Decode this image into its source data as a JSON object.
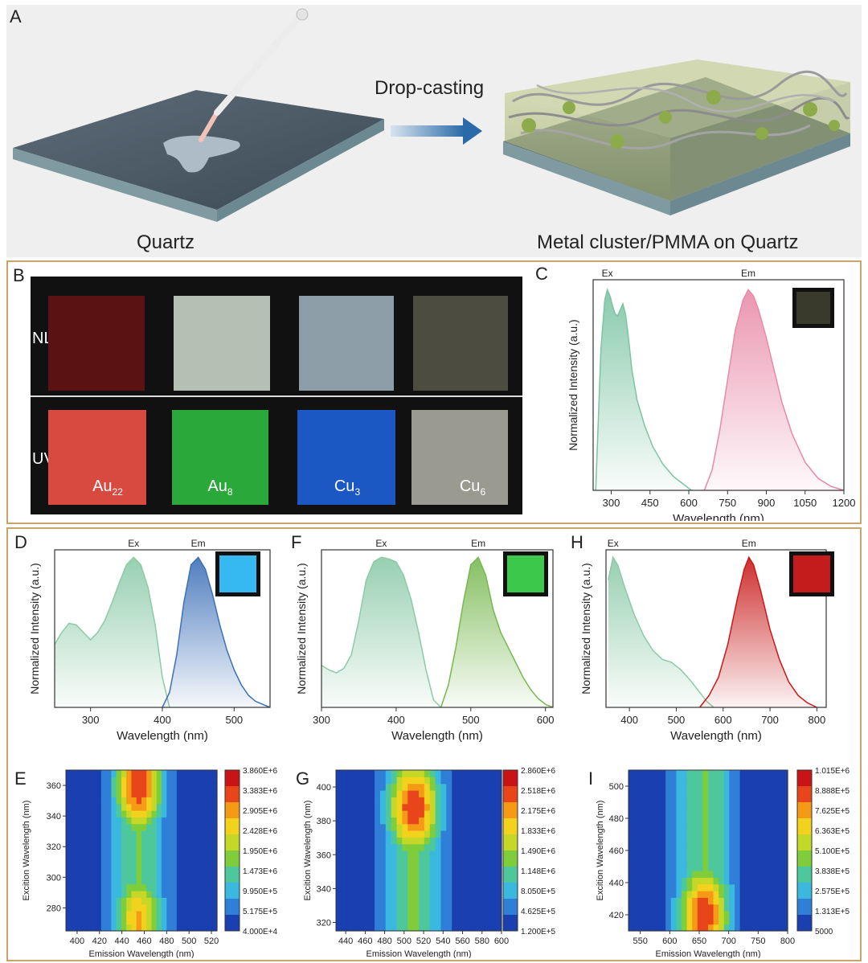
{
  "panel_a": {
    "letter": "A",
    "process": "Drop-casting",
    "left_caption": "Quartz",
    "right_caption": "Metal cluster/PMMA on Quartz"
  },
  "panel_b": {
    "letter": "B",
    "row_top": "NL",
    "row_bottom": "UV",
    "samples": [
      {
        "base": "Au",
        "sub": "22",
        "nl_color": "#5a1212",
        "uv_color": "#d84a40"
      },
      {
        "base": "Au",
        "sub": "8",
        "nl_color": "#b4c0b4",
        "uv_color": "#2aa83a"
      },
      {
        "base": "Cu",
        "sub": "3",
        "nl_color": "#8e9ea8",
        "uv_color": "#1c58c4"
      },
      {
        "base": "Cu",
        "sub": "6",
        "nl_color": "#4c4c40",
        "uv_color": "#9a9a90"
      }
    ]
  },
  "spectra": [
    {
      "letter": "C",
      "xlabel": "Wavelength (nm)",
      "ylabel": "Normalized Intensity (a.u.)",
      "ex_label": "Ex",
      "em_label": "Em",
      "ticks": [
        "300",
        "450",
        "600",
        "750",
        "900",
        "1050",
        "1200"
      ],
      "ex_color": "#7cc4a4",
      "em_color": "#e88aa8",
      "inset": "#3a3a2c"
    },
    {
      "letter": "D",
      "xlabel": "Wavelength (nm)",
      "ylabel": "Normalized Intensity (a.u.)",
      "ex_label": "Ex",
      "em_label": "Em",
      "ticks": [
        "300",
        "400",
        "500"
      ],
      "ex_color": "#8ccaa8",
      "em_color": "#3c70b8",
      "inset": "#36b8f0"
    },
    {
      "letter": "F",
      "xlabel": "Wavelength (nm)",
      "ylabel": "Normalized Intensity (a.u.)",
      "ex_label": "Ex",
      "em_label": "Em",
      "ticks": [
        "300",
        "400",
        "500",
        "600"
      ],
      "ex_color": "#8ccaa8",
      "em_color": "#78b850",
      "inset": "#3cc84a"
    },
    {
      "letter": "H",
      "xlabel": "Wavelength (nm)",
      "ylabel": "Normalized Intensity (a.u.)",
      "ex_label": "Ex",
      "em_label": "Em",
      "ticks": [
        "400",
        "500",
        "600",
        "700",
        "800"
      ],
      "ex_color": "#8ccaa8",
      "em_color": "#c81818",
      "inset": "#c41c1c"
    }
  ],
  "chart_data": [
    {
      "type": "area",
      "id": "C",
      "title": "",
      "xlabel": "Wavelength (nm)",
      "ylabel": "Normalized Intensity (a.u.)",
      "xlim": [
        230,
        1200
      ],
      "ylim": [
        0,
        1.05
      ],
      "series": [
        {
          "name": "Ex",
          "x": [
            240,
            260,
            275,
            285,
            295,
            305,
            315,
            325,
            335,
            345,
            355,
            365,
            380,
            400,
            430,
            460,
            500,
            540,
            580,
            610
          ],
          "y": [
            0,
            0.7,
            0.95,
            1.0,
            0.97,
            0.92,
            0.88,
            0.87,
            0.9,
            0.93,
            0.88,
            0.78,
            0.6,
            0.45,
            0.32,
            0.22,
            0.13,
            0.07,
            0.03,
            0.0
          ]
        },
        {
          "name": "Em",
          "x": [
            660,
            690,
            720,
            750,
            780,
            810,
            830,
            850,
            870,
            900,
            930,
            960,
            1000,
            1050,
            1100,
            1150,
            1200
          ],
          "y": [
            0.0,
            0.1,
            0.3,
            0.55,
            0.8,
            0.95,
            1.0,
            0.97,
            0.9,
            0.76,
            0.6,
            0.44,
            0.28,
            0.14,
            0.06,
            0.02,
            0.0
          ]
        }
      ]
    },
    {
      "type": "area",
      "id": "D",
      "title": "",
      "xlabel": "Wavelength (nm)",
      "ylabel": "Normalized Intensity (a.u.)",
      "xlim": [
        250,
        550
      ],
      "ylim": [
        0,
        1.05
      ],
      "series": [
        {
          "name": "Ex",
          "x": [
            250,
            260,
            270,
            280,
            290,
            300,
            310,
            320,
            330,
            340,
            350,
            360,
            370,
            380,
            390,
            400,
            410
          ],
          "y": [
            0.42,
            0.5,
            0.56,
            0.55,
            0.5,
            0.45,
            0.5,
            0.58,
            0.7,
            0.83,
            0.95,
            1.0,
            0.95,
            0.8,
            0.55,
            0.2,
            0.0
          ]
        },
        {
          "name": "Em",
          "x": [
            400,
            410,
            420,
            430,
            440,
            450,
            460,
            470,
            480,
            490,
            500,
            510,
            520,
            530,
            540,
            550
          ],
          "y": [
            0.0,
            0.1,
            0.35,
            0.7,
            0.95,
            1.0,
            0.92,
            0.75,
            0.55,
            0.38,
            0.25,
            0.15,
            0.08,
            0.04,
            0.02,
            0.0
          ]
        }
      ]
    },
    {
      "type": "area",
      "id": "F",
      "title": "",
      "xlabel": "Wavelength (nm)",
      "ylabel": "Normalized Intensity (a.u.)",
      "xlim": [
        300,
        610
      ],
      "ylim": [
        0,
        1.05
      ],
      "series": [
        {
          "name": "Ex",
          "x": [
            300,
            310,
            320,
            330,
            340,
            350,
            360,
            370,
            380,
            390,
            400,
            410,
            420,
            430,
            440,
            450,
            460
          ],
          "y": [
            0.28,
            0.25,
            0.23,
            0.26,
            0.35,
            0.58,
            0.85,
            0.97,
            1.0,
            0.99,
            0.97,
            0.88,
            0.72,
            0.5,
            0.25,
            0.05,
            0.0
          ]
        },
        {
          "name": "Em",
          "x": [
            460,
            470,
            480,
            490,
            500,
            510,
            520,
            530,
            540,
            550,
            560,
            570,
            580,
            590,
            600,
            610
          ],
          "y": [
            0.0,
            0.15,
            0.4,
            0.7,
            0.95,
            1.0,
            0.88,
            0.65,
            0.5,
            0.4,
            0.3,
            0.2,
            0.12,
            0.06,
            0.02,
            0.0
          ]
        }
      ]
    },
    {
      "type": "area",
      "id": "H",
      "title": "",
      "xlabel": "Wavelength (nm)",
      "ylabel": "Normalized Intensity (a.u.)",
      "xlim": [
        350,
        820
      ],
      "ylim": [
        0,
        1.05
      ],
      "series": [
        {
          "name": "Ex",
          "x": [
            355,
            365,
            375,
            390,
            410,
            430,
            450,
            470,
            490,
            510,
            530,
            550,
            565,
            580
          ],
          "y": [
            0.85,
            1.0,
            0.95,
            0.8,
            0.62,
            0.48,
            0.38,
            0.32,
            0.3,
            0.25,
            0.18,
            0.1,
            0.04,
            0.0
          ]
        },
        {
          "name": "Em",
          "x": [
            550,
            570,
            590,
            610,
            630,
            645,
            655,
            665,
            680,
            700,
            720,
            740,
            760,
            780,
            800
          ],
          "y": [
            0.0,
            0.08,
            0.2,
            0.42,
            0.72,
            0.92,
            1.0,
            0.95,
            0.78,
            0.52,
            0.32,
            0.17,
            0.08,
            0.03,
            0.0
          ]
        }
      ]
    },
    {
      "type": "heatmap",
      "id": "E",
      "xlabel": "Emission Wavelength (nm)",
      "ylabel": "Excition Wavelength (nm)",
      "xlim": [
        390,
        525
      ],
      "ylim": [
        265,
        370
      ],
      "xticks": [
        "400",
        "420",
        "440",
        "460",
        "480",
        "500",
        "520"
      ],
      "yticks": [
        "280",
        "300",
        "320",
        "340",
        "360"
      ],
      "colorbar": [
        "3.860E+6",
        "3.383E+6",
        "2.905E+6",
        "2.428E+6",
        "1.950E+6",
        "1.473E+6",
        "9.950E+5",
        "5.175E+5",
        "4.000E+4"
      ],
      "peaks": [
        {
          "x": 455,
          "y": 360,
          "v": 1.0
        },
        {
          "x": 455,
          "y": 272,
          "v": 0.8
        }
      ]
    },
    {
      "type": "heatmap",
      "id": "G",
      "xlabel": "Emission Wavelength (nm)",
      "ylabel": "Excition Wavelength (nm)",
      "xlim": [
        430,
        600
      ],
      "ylim": [
        315,
        410
      ],
      "xticks": [
        "440",
        "460",
        "480",
        "500",
        "520",
        "540",
        "560",
        "580",
        "600"
      ],
      "yticks": [
        "320",
        "340",
        "360",
        "380",
        "400"
      ],
      "colorbar": [
        "2.860E+6",
        "2.518E+6",
        "2.175E+6",
        "1.833E+6",
        "1.490E+6",
        "1.148E+6",
        "8.050E+5",
        "4.625E+5",
        "1.200E+5"
      ],
      "peaks": [
        {
          "x": 510,
          "y": 388,
          "v": 1.0
        }
      ]
    },
    {
      "type": "heatmap",
      "id": "I",
      "xlabel": "Emission Wavelength (nm)",
      "ylabel": "Excition Wavelength (nm)",
      "xlim": [
        530,
        800
      ],
      "ylim": [
        410,
        510
      ],
      "xticks": [
        "550",
        "600",
        "650",
        "700",
        "750",
        "800"
      ],
      "yticks": [
        "420",
        "440",
        "460",
        "480",
        "500"
      ],
      "colorbar": [
        "1.015E+6",
        "8.888E+5",
        "7.625E+5",
        "6.363E+5",
        "5.100E+5",
        "3.838E+5",
        "2.575E+5",
        "1.313E+5",
        "5000"
      ],
      "peaks": [
        {
          "x": 658,
          "y": 420,
          "v": 1.0
        }
      ]
    }
  ]
}
